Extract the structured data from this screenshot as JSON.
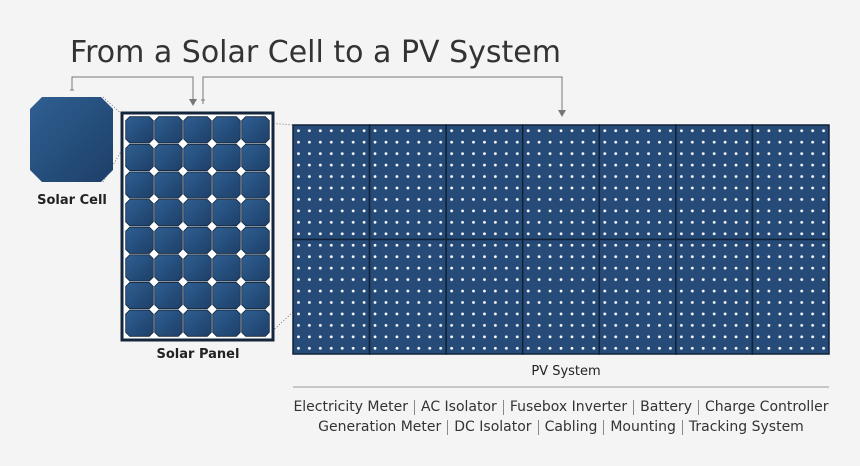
{
  "header": {
    "title": "From a Solar Cell to a PV System"
  },
  "labels": {
    "cell": "Solar Cell",
    "panel": "Solar Panel",
    "system": "PV System"
  },
  "components": [
    [
      "Electricity Meter",
      "AC Isolator",
      "Fusebox Inverter",
      "Battery",
      "Charge Controller"
    ],
    [
      "Generation Meter",
      "DC Isolator",
      "Cabling",
      "Mounting",
      "Tracking System"
    ]
  ]
}
